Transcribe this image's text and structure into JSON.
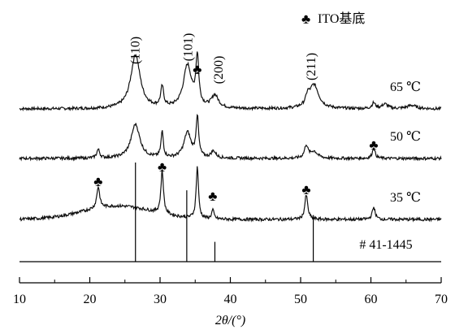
{
  "chart_data": {
    "type": "line",
    "xlabel": "2θ/(°)",
    "xlim": [
      10,
      70
    ],
    "xticks": [
      10,
      20,
      30,
      40,
      50,
      60,
      70
    ],
    "legend": {
      "marker": "♣",
      "label": "ITO基底",
      "position": "top-right"
    },
    "series": [
      {
        "name": "65 ℃",
        "baseline": 0.0,
        "peaks": [
          [
            26.5,
            0.95,
            0.8
          ],
          [
            30.3,
            0.35,
            0.25
          ],
          [
            33.9,
            0.75,
            0.7
          ],
          [
            35.3,
            0.85,
            0.25
          ],
          [
            37.8,
            0.22,
            0.6
          ],
          [
            51.9,
            0.42,
            0.8
          ],
          [
            51.0,
            0.15,
            0.3
          ],
          [
            60.4,
            0.1,
            0.3
          ],
          [
            62.0,
            0.08,
            0.5
          ],
          [
            65.8,
            0.06,
            0.8
          ]
        ]
      },
      {
        "name": "50 ℃",
        "baseline": 0.0,
        "peaks": [
          [
            21.2,
            0.15,
            0.25
          ],
          [
            26.5,
            0.6,
            0.75
          ],
          [
            30.3,
            0.45,
            0.2
          ],
          [
            33.9,
            0.45,
            0.6
          ],
          [
            35.3,
            0.7,
            0.22
          ],
          [
            37.6,
            0.12,
            0.4
          ],
          [
            50.8,
            0.22,
            0.3
          ],
          [
            51.9,
            0.12,
            0.6
          ],
          [
            60.4,
            0.18,
            0.25
          ]
        ]
      },
      {
        "name": "35 ℃",
        "baseline": 0.0,
        "hump": [
          24.0,
          0.22,
          7.0
        ],
        "peaks": [
          [
            21.2,
            0.35,
            0.25
          ],
          [
            30.3,
            0.7,
            0.22
          ],
          [
            35.3,
            0.85,
            0.2
          ],
          [
            37.5,
            0.15,
            0.2
          ],
          [
            50.8,
            0.4,
            0.25
          ],
          [
            60.4,
            0.2,
            0.25
          ]
        ]
      }
    ],
    "reference": {
      "name": "# 41-1445",
      "lines": [
        [
          26.5,
          1.0
        ],
        [
          33.8,
          0.72
        ],
        [
          37.8,
          0.2
        ],
        [
          51.8,
          0.47
        ]
      ]
    },
    "annotations": [
      {
        "text": "(110)",
        "x": 26.5
      },
      {
        "text": "(101)",
        "x": 33.9
      },
      {
        "text": "(200)",
        "x": 37.8
      },
      {
        "text": "(211)",
        "x": 51.9
      }
    ],
    "ito_markers": [
      {
        "series": "65 ℃",
        "x": 35.3
      },
      {
        "series": "50 ℃",
        "x": 60.4
      },
      {
        "series": "35 ℃",
        "x": 21.2
      },
      {
        "series": "35 ℃",
        "x": 30.3
      },
      {
        "series": "35 ℃",
        "x": 37.5
      },
      {
        "series": "35 ℃",
        "x": 50.8
      }
    ]
  }
}
